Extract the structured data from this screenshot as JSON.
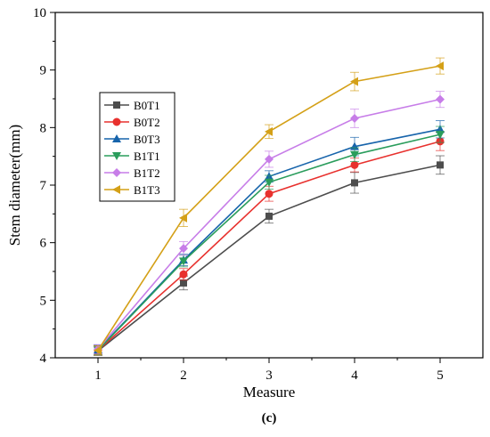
{
  "chart_data": {
    "type": "line",
    "title": "",
    "xlabel": "Measure",
    "ylabel": "Stem diameter(mm)",
    "panel_label": "(c)",
    "x": [
      1,
      2,
      3,
      4,
      5
    ],
    "xlim": [
      0.5,
      5.5
    ],
    "ylim": [
      4,
      10
    ],
    "xticks": [
      1,
      2,
      3,
      4,
      5
    ],
    "yticks": [
      4,
      5,
      6,
      7,
      8,
      9,
      10
    ],
    "grid": false,
    "legend_position": "left, upper-middle",
    "series": [
      {
        "name": "B0T1",
        "color": "#4d4d4d",
        "marker": "square",
        "values": [
          4.12,
          5.3,
          6.46,
          7.04,
          7.35
        ],
        "errors": [
          0.08,
          0.12,
          0.12,
          0.18,
          0.16
        ]
      },
      {
        "name": "B0T2",
        "color": "#e8312e",
        "marker": "circle",
        "values": [
          4.13,
          5.45,
          6.85,
          7.35,
          7.76
        ],
        "errors": [
          0.08,
          0.1,
          0.13,
          0.12,
          0.16
        ]
      },
      {
        "name": "B0T3",
        "color": "#1764ab",
        "marker": "triangle-up",
        "values": [
          4.14,
          5.7,
          7.15,
          7.67,
          7.97
        ],
        "errors": [
          0.08,
          0.1,
          0.1,
          0.16,
          0.15
        ]
      },
      {
        "name": "B1T1",
        "color": "#2a9d5c",
        "marker": "triangle-down",
        "values": [
          4.13,
          5.68,
          7.05,
          7.53,
          7.88
        ],
        "errors": [
          0.08,
          0.1,
          0.12,
          0.12,
          0.14
        ]
      },
      {
        "name": "B1T2",
        "color": "#c77de8",
        "marker": "diamond",
        "values": [
          4.15,
          5.9,
          7.45,
          8.16,
          8.49
        ],
        "errors": [
          0.08,
          0.12,
          0.14,
          0.16,
          0.14
        ]
      },
      {
        "name": "B1T3",
        "color": "#d4a017",
        "marker": "triangle-left",
        "values": [
          4.13,
          6.43,
          7.93,
          8.8,
          9.07
        ],
        "errors": [
          0.08,
          0.15,
          0.12,
          0.16,
          0.14
        ]
      }
    ]
  }
}
